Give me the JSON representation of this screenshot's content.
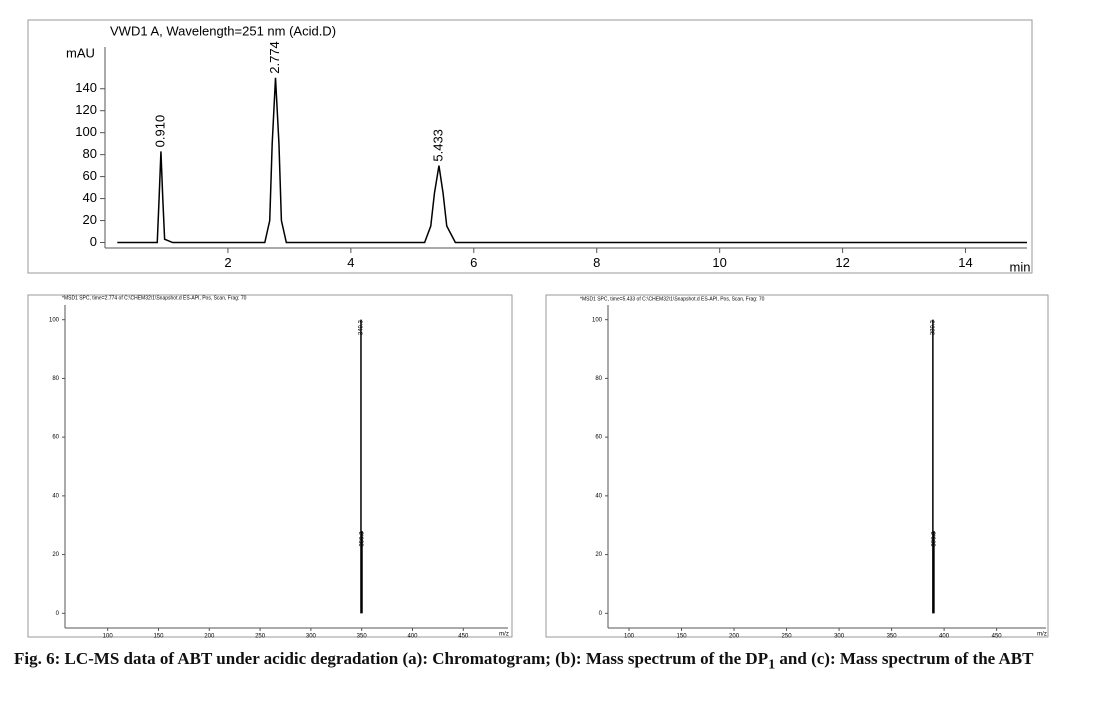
{
  "chart_data": [
    {
      "type": "line",
      "title": "VWD1 A, Wavelength=251 nm (Acid.D)",
      "y_label": "mAU",
      "x_label": "min",
      "xlim": [
        0,
        15
      ],
      "xticks": [
        2,
        4,
        6,
        8,
        10,
        12,
        14
      ],
      "ylim": [
        -5,
        178
      ],
      "yticks": [
        0,
        20,
        40,
        60,
        80,
        100,
        120,
        140
      ],
      "series": [
        {
          "color": "#000000",
          "x": [
            0.2,
            0.85,
            0.88,
            0.91,
            0.94,
            0.97,
            1.1,
            2.6,
            2.68,
            2.72,
            2.774,
            2.83,
            2.87,
            2.95,
            5.2,
            5.3,
            5.36,
            5.433,
            5.5,
            5.56,
            5.7,
            15
          ],
          "values": [
            0,
            0,
            40,
            83,
            40,
            3,
            0,
            0,
            20,
            90,
            150,
            90,
            20,
            0,
            0,
            15,
            45,
            70,
            45,
            15,
            0,
            0
          ]
        }
      ],
      "annotations": [
        {
          "text": "0.910",
          "x": 0.91,
          "y": 83
        },
        {
          "text": "2.774",
          "x": 2.774,
          "y": 150
        },
        {
          "text": "5.433",
          "x": 5.433,
          "y": 70
        }
      ]
    },
    {
      "type": "stick",
      "title": "*MSD1 SPC, time=2.774 of C:\\CHEM32\\1\\Snapshot.d   ES-API, Pos, Scan, Frag: 70",
      "x_label": "m/z",
      "xlim": [
        58,
        494
      ],
      "xticks": [
        100,
        150,
        200,
        250,
        300,
        350,
        400,
        450
      ],
      "ylim": [
        -5,
        105
      ],
      "yticks": [
        0,
        20,
        40,
        60,
        80,
        100
      ],
      "series": [
        {
          "color": "#000000",
          "x": [
            349.3,
            350.3
          ],
          "values": [
            100,
            28
          ]
        }
      ],
      "annotations": [
        {
          "text": "349.3",
          "x": 349.3,
          "y": 100
        },
        {
          "text": "350.3",
          "x": 350.3,
          "y": 28
        }
      ]
    },
    {
      "type": "stick",
      "title": "*MSD1 SPC, time=5.433 of C:\\CHEM32\\1\\Snapshot.d   ES-API, Pos, Scan, Frag: 70",
      "x_label": "m/z",
      "xlim": [
        80,
        497
      ],
      "xticks": [
        100,
        150,
        200,
        250,
        300,
        350,
        400,
        450
      ],
      "ylim": [
        -5,
        105
      ],
      "yticks": [
        0,
        20,
        40,
        60,
        80,
        100
      ],
      "series": [
        {
          "color": "#000000",
          "x": [
            389.3,
            390.3
          ],
          "values": [
            100,
            28
          ]
        }
      ],
      "annotations": [
        {
          "text": "389.3",
          "x": 389.3,
          "y": 100
        },
        {
          "text": "390.3",
          "x": 390.3,
          "y": 28
        }
      ]
    }
  ],
  "caption": {
    "before": "Fig. 6: LC-MS data of ABT under acidic degradation (a): Chromatogram; (b): Mass spectrum of the DP",
    "sub": "1",
    "after": " and (c): Mass spectrum of the ABT"
  }
}
